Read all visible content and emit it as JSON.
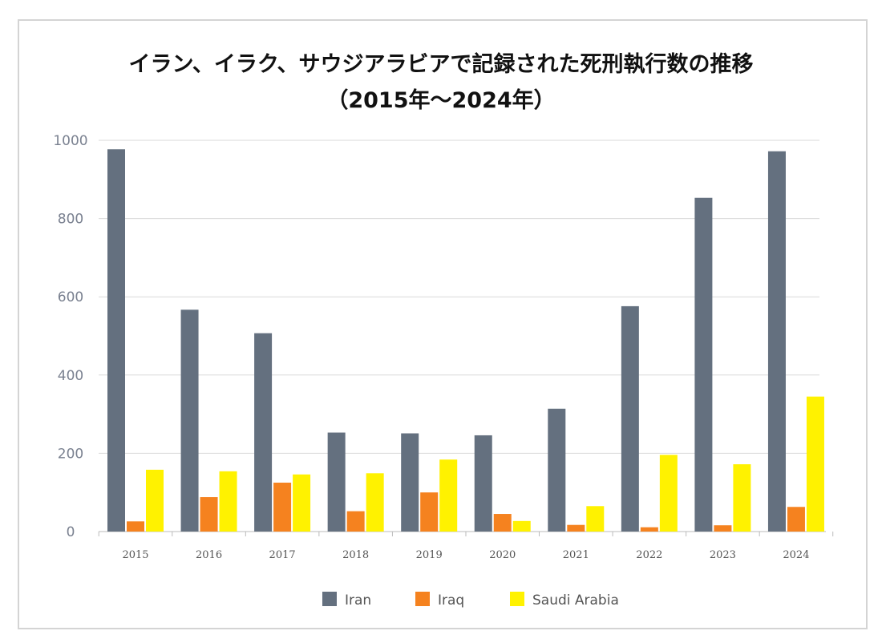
{
  "chart_data": {
    "type": "bar",
    "title": "イラン、イラク、サウジアラビアで記録された死刑執行数の推移",
    "subtitle": "（2015年～2024年）",
    "categories": [
      "2015",
      "2016",
      "2017",
      "2018",
      "2019",
      "2020",
      "2021",
      "2022",
      "2023",
      "2024"
    ],
    "series": [
      {
        "name": "Iran",
        "color": "#64707f",
        "values": [
          977,
          567,
          507,
          253,
          251,
          246,
          314,
          576,
          853,
          972
        ]
      },
      {
        "name": "Iraq",
        "color": "#f5821f",
        "values": [
          26,
          88,
          125,
          52,
          100,
          45,
          17,
          11,
          16,
          63
        ]
      },
      {
        "name": "Saudi Arabia",
        "color": "#fff200",
        "values": [
          158,
          154,
          146,
          149,
          184,
          27,
          65,
          196,
          172,
          345
        ]
      }
    ],
    "ylim": [
      0,
      1000
    ],
    "yticks": [
      0,
      200,
      400,
      600,
      800,
      1000
    ],
    "grid": true,
    "legend": "bottom"
  }
}
